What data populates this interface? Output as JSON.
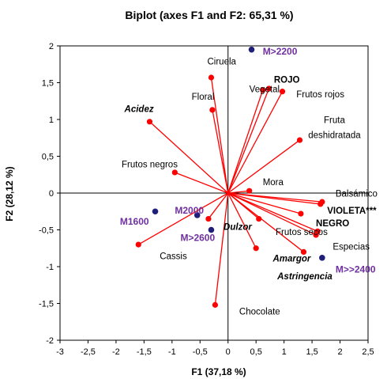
{
  "chart_data": {
    "type": "scatter",
    "title": "Biplot (axes F1 and F2: 65,31 %)",
    "xlabel": "F1 (37,18 %)",
    "ylabel": "F2 (28,12 %)",
    "xlim": [
      -3,
      2.5
    ],
    "ylim": [
      -2,
      2
    ],
    "xticks": [
      -3,
      -2.5,
      -2,
      -1.5,
      -1,
      -0.5,
      0,
      0.5,
      1,
      1.5,
      2,
      2.5
    ],
    "yticks": [
      -2,
      -1.5,
      -1,
      -0.5,
      0,
      0.5,
      1,
      1.5,
      2
    ],
    "xtick_labels": [
      "-3",
      "-2,5",
      "-2",
      "-1,5",
      "-1",
      "-0,5",
      "0",
      "0,5",
      "1",
      "1,5",
      "2",
      "2,5"
    ],
    "ytick_labels": [
      "-2",
      "-1,5",
      "-1",
      "-0,5",
      "0",
      "0,5",
      "1",
      "1,5",
      "2"
    ],
    "colors": {
      "variables": "#ff0000",
      "observations": "#1f1f7a",
      "observation_labels": "#7030a0",
      "axes": "#000000"
    },
    "variables": [
      {
        "label": "Ciruela",
        "x": -0.3,
        "y": 1.57,
        "lx": -0.37,
        "ly": 1.75,
        "style": "normal",
        "anchor": "start"
      },
      {
        "label": "Floral",
        "x": -0.28,
        "y": 1.13,
        "lx": -0.65,
        "ly": 1.27,
        "style": "normal",
        "anchor": "start"
      },
      {
        "label": "Acidez",
        "x": -1.4,
        "y": 0.97,
        "lx": -1.85,
        "ly": 1.1,
        "style": "bolditalic",
        "anchor": "start"
      },
      {
        "label": "Frutos negros",
        "x": -0.95,
        "y": 0.28,
        "lx": -1.9,
        "ly": 0.35,
        "style": "normal",
        "anchor": "start"
      },
      {
        "label": "Vegetal",
        "x": 0.62,
        "y": 1.4,
        "lx": 0.38,
        "ly": 1.37,
        "style": "normal",
        "anchor": "start"
      },
      {
        "label": "ROJO",
        "x": 0.73,
        "y": 1.42,
        "lx": 0.82,
        "ly": 1.5,
        "style": "bold",
        "anchor": "start"
      },
      {
        "label": "Frutos rojos",
        "x": 0.97,
        "y": 1.38,
        "lx": 1.22,
        "ly": 1.3,
        "style": "normal",
        "anchor": "start"
      },
      {
        "label": "Fruta deshidratada",
        "x": 1.28,
        "y": 0.72,
        "lx": 1.9,
        "ly": 0.95,
        "ly2": 0.75,
        "style": "normal",
        "anchor": "middle",
        "label_line2": "deshidratada",
        "label_line1": "Fruta"
      },
      {
        "label": "Mora",
        "x": 0.38,
        "y": 0.03,
        "lx": 0.62,
        "ly": 0.11,
        "style": "normal",
        "anchor": "start"
      },
      {
        "label": "Balsámico",
        "x": 1.68,
        "y": -0.12,
        "lx": 1.92,
        "ly": -0.05,
        "style": "normal",
        "anchor": "start"
      },
      {
        "label": "VIOLETA***",
        "x": 1.65,
        "y": -0.15,
        "lx": 1.77,
        "ly": -0.28,
        "style": "bold",
        "anchor": "start"
      },
      {
        "label": "NEGRO",
        "x": 1.3,
        "y": -0.28,
        "lx": 1.57,
        "ly": -0.45,
        "style": "bold",
        "anchor": "start"
      },
      {
        "label": "Frutos secos",
        "x": 1.57,
        "y": -0.57,
        "lx": 0.85,
        "ly": -0.57,
        "style": "normal",
        "anchor": "start"
      },
      {
        "label": "Especias",
        "x": 1.6,
        "y": -0.52,
        "lx": 1.87,
        "ly": -0.77,
        "style": "normal",
        "anchor": "start"
      },
      {
        "label": "Dulzor",
        "x": 0.55,
        "y": -0.35,
        "lx": -0.08,
        "ly": -0.5,
        "style": "bolditalic",
        "anchor": "start"
      },
      {
        "label": "Amargor",
        "x": 1.35,
        "y": -0.8,
        "lx": 0.8,
        "ly": -0.93,
        "style": "bolditalic",
        "anchor": "start"
      },
      {
        "label": "Astringencia",
        "x": 0.5,
        "y": -0.75,
        "lx": 0.88,
        "ly": -1.17,
        "style": "bolditalic",
        "anchor": "start"
      },
      {
        "label": "Cassis",
        "x": -1.6,
        "y": -0.7,
        "lx": -1.22,
        "ly": -0.9,
        "style": "normal",
        "anchor": "start"
      },
      {
        "label": "",
        "x": -0.35,
        "y": -0.35,
        "lx": null,
        "ly": null,
        "style": "normal",
        "anchor": "start"
      },
      {
        "label": "Chocolate",
        "x": -0.23,
        "y": -1.52,
        "lx": 0.2,
        "ly": -1.65,
        "style": "normal",
        "anchor": "start"
      }
    ],
    "observations": [
      {
        "label": "M>2200",
        "x": 0.42,
        "y": 1.95,
        "lx": 0.62,
        "ly": 1.88
      },
      {
        "label": "M2000",
        "x": -0.55,
        "y": -0.3,
        "lx": -0.95,
        "ly": -0.28
      },
      {
        "label": "M1600",
        "x": -1.3,
        "y": -0.25,
        "lx": -1.93,
        "ly": -0.43
      },
      {
        "label": "M>2600",
        "x": -0.3,
        "y": -0.5,
        "lx": -0.85,
        "ly": -0.65
      },
      {
        "label": "M>>2400",
        "x": 1.68,
        "y": -0.88,
        "lx": 1.92,
        "ly": -1.08
      }
    ]
  }
}
